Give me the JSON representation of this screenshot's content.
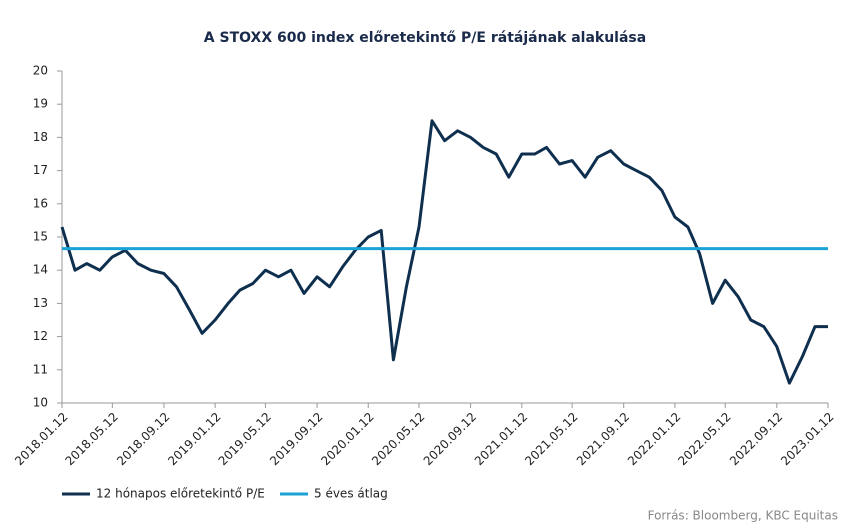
{
  "chart_data": {
    "type": "line",
    "title": "A STOXX 600 index előretekintő P/E rátájának alakulása",
    "source": "Forrás: Bloomberg, KBC Equitas",
    "x": [
      "2018.01.12",
      "2018.02.12",
      "2018.03.12",
      "2018.04.12",
      "2018.05.12",
      "2018.06.12",
      "2018.07.12",
      "2018.08.12",
      "2018.09.12",
      "2018.10.12",
      "2018.11.12",
      "2018.12.12",
      "2019.01.12",
      "2019.02.12",
      "2019.03.12",
      "2019.04.12",
      "2019.05.12",
      "2019.06.12",
      "2019.07.12",
      "2019.08.12",
      "2019.09.12",
      "2019.10.12",
      "2019.11.12",
      "2019.12.12",
      "2020.01.12",
      "2020.02.12",
      "2020.03.12",
      "2020.04.12",
      "2020.05.12",
      "2020.06.12",
      "2020.07.12",
      "2020.08.12",
      "2020.09.12",
      "2020.10.12",
      "2020.11.12",
      "2020.12.12",
      "2021.01.12",
      "2021.02.12",
      "2021.03.12",
      "2021.04.12",
      "2021.05.12",
      "2021.06.12",
      "2021.07.12",
      "2021.08.12",
      "2021.09.12",
      "2021.10.12",
      "2021.11.12",
      "2021.12.12",
      "2022.01.12",
      "2022.02.12",
      "2022.03.12",
      "2022.04.12",
      "2022.05.12",
      "2022.06.12",
      "2022.07.12",
      "2022.08.12",
      "2022.09.12",
      "2022.10.12",
      "2022.11.12",
      "2022.12.12",
      "2023.01.12"
    ],
    "series": [
      {
        "name": "12 hónapos előretekintő P/E",
        "color": "#0f2f4f",
        "values": [
          15.3,
          14.0,
          14.2,
          14.0,
          14.4,
          14.6,
          14.2,
          14.0,
          13.9,
          13.5,
          12.8,
          12.1,
          12.5,
          13.0,
          13.4,
          13.6,
          14.0,
          13.8,
          14.0,
          13.3,
          13.8,
          13.5,
          14.1,
          14.6,
          15.0,
          15.2,
          11.3,
          13.5,
          15.3,
          18.5,
          17.9,
          18.2,
          18.0,
          17.7,
          17.5,
          16.8,
          17.5,
          17.5,
          17.7,
          17.2,
          17.3,
          16.8,
          17.4,
          17.6,
          17.2,
          17.0,
          16.8,
          16.4,
          15.6,
          15.3,
          14.5,
          13.0,
          13.7,
          13.2,
          12.5,
          12.3,
          11.7,
          10.6,
          11.4,
          12.3,
          12.3
        ]
      },
      {
        "name": "5 éves átlag",
        "color": "#1aa3d4",
        "values": [
          14.65,
          14.65,
          14.65,
          14.65,
          14.65,
          14.65,
          14.65,
          14.65,
          14.65,
          14.65,
          14.65,
          14.65,
          14.65,
          14.65,
          14.65,
          14.65,
          14.65,
          14.65,
          14.65,
          14.65,
          14.65,
          14.65,
          14.65,
          14.65,
          14.65,
          14.65,
          14.65,
          14.65,
          14.65,
          14.65,
          14.65,
          14.65,
          14.65,
          14.65,
          14.65,
          14.65,
          14.65,
          14.65,
          14.65,
          14.65,
          14.65,
          14.65,
          14.65,
          14.65,
          14.65,
          14.65,
          14.65,
          14.65,
          14.65,
          14.65,
          14.65,
          14.65,
          14.65,
          14.65,
          14.65,
          14.65,
          14.65,
          14.65,
          14.65,
          14.65,
          14.65
        ]
      }
    ],
    "ylim": [
      10,
      20
    ],
    "yticks": [
      10,
      11,
      12,
      13,
      14,
      15,
      16,
      17,
      18,
      19,
      20
    ],
    "xticks": [
      "2018.01.12",
      "2018.05.12",
      "2018.09.12",
      "2019.01.12",
      "2019.05.12",
      "2019.09.12",
      "2020.01.12",
      "2020.05.12",
      "2020.09.12",
      "2021.01.12",
      "2021.05.12",
      "2021.09.12",
      "2022.01.12",
      "2022.05.12",
      "2022.09.12",
      "2023.01.12"
    ],
    "legend": "bottom-left"
  }
}
